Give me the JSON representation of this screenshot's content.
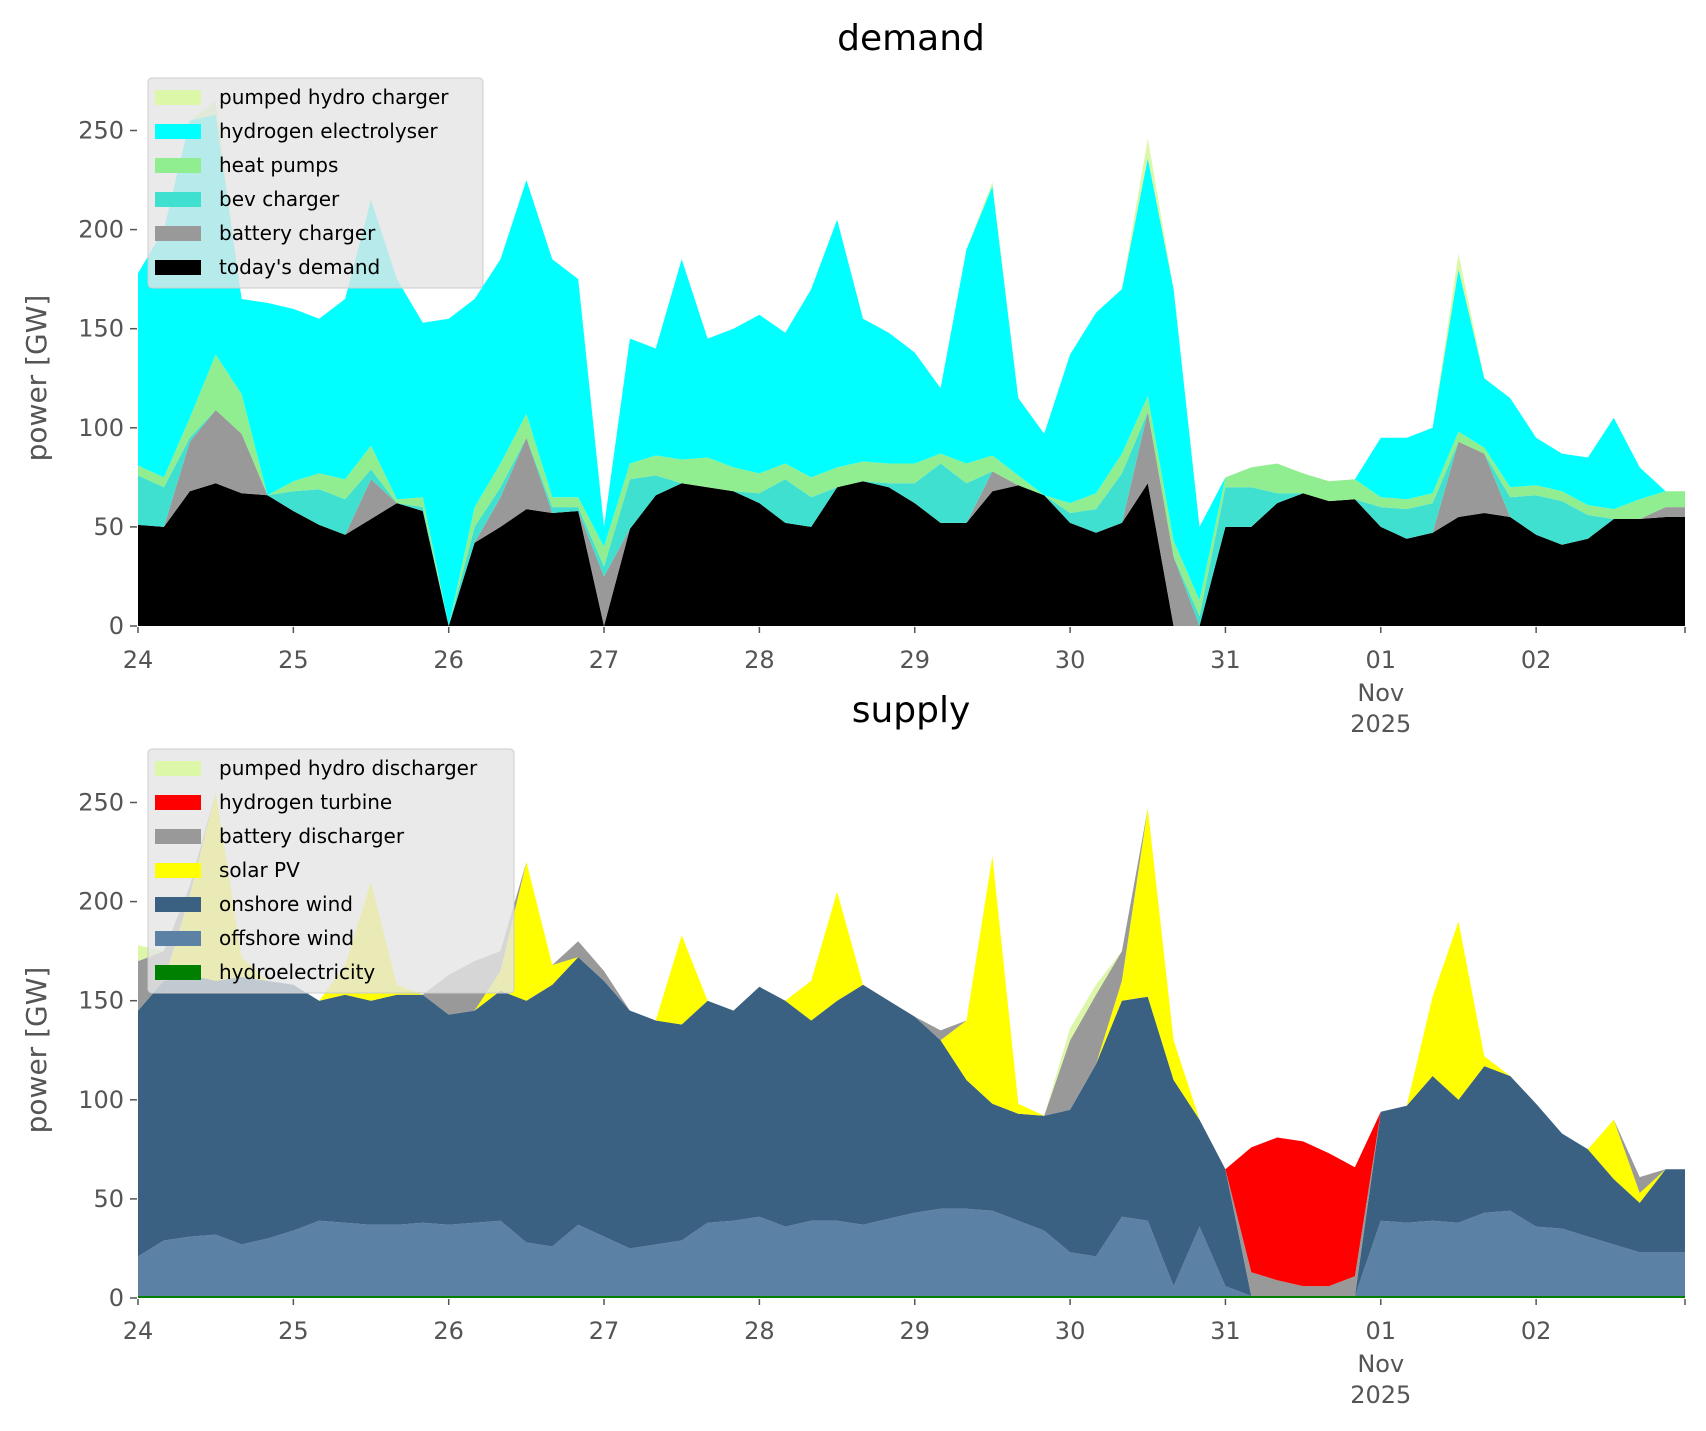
{
  "chart_data": [
    {
      "type": "area",
      "stacked": true,
      "title": "demand",
      "ylabel": "power [GW]",
      "xlabel": "",
      "x_start": "2025-10-24 00:00",
      "x_step_hours": 4,
      "ylim": [
        0,
        275
      ],
      "grid": false,
      "legend_placement": "top-left",
      "xtick_labels": [
        "24",
        "25",
        "26",
        "27",
        "28",
        "29",
        "30",
        "31",
        "01",
        "02"
      ],
      "xtick_sublabel": [
        "Nov",
        "2025"
      ],
      "ytick_labels": [
        "0",
        "50",
        "100",
        "150",
        "200",
        "250"
      ],
      "series": [
        {
          "name": "pumped hydro charger",
          "color": "#dcf7a8",
          "values": [
            0,
            0,
            0,
            7,
            0,
            0,
            0,
            0,
            0,
            0,
            0,
            0,
            0,
            0,
            0,
            0,
            0,
            0,
            0,
            0,
            0,
            0,
            0,
            0,
            0,
            0,
            0,
            0,
            0,
            0,
            0,
            0,
            0,
            2,
            0,
            0,
            0,
            0,
            0,
            10,
            0,
            0,
            0,
            0,
            0,
            0,
            0,
            0,
            0,
            0,
            0,
            8,
            0,
            0,
            0,
            0,
            0,
            0,
            0,
            0
          ]
        },
        {
          "name": "hydrogen electrolyser",
          "color": "#00ffff",
          "values": [
            97,
            125,
            150,
            121,
            48,
            97,
            87,
            78,
            91,
            124,
            111,
            88,
            155,
            105,
            103,
            118,
            120,
            110,
            10,
            63,
            54,
            101,
            60,
            70,
            80,
            66,
            95,
            125,
            72,
            66,
            56,
            33,
            108,
            136,
            39,
            31,
            75,
            91,
            83,
            120,
            127,
            37,
            0,
            0,
            0,
            0,
            0,
            0,
            30,
            31,
            33,
            82,
            35,
            45,
            24,
            19,
            24,
            46,
            16,
            0
          ]
        },
        {
          "name": "heat pumps",
          "color": "#90ee90",
          "values": [
            5,
            5,
            10,
            28,
            20,
            0,
            5,
            8,
            10,
            12,
            2,
            5,
            0,
            10,
            12,
            12,
            5,
            5,
            10,
            8,
            10,
            12,
            15,
            12,
            10,
            8,
            10,
            10,
            10,
            10,
            10,
            5,
            10,
            8,
            5,
            0,
            5,
            8,
            10,
            8,
            8,
            8,
            5,
            10,
            15,
            10,
            10,
            10,
            5,
            5,
            5,
            5,
            3,
            5,
            5,
            5,
            5,
            5,
            10,
            8
          ]
        },
        {
          "name": "bev charger",
          "color": "#40e0d0",
          "values": [
            25,
            20,
            2,
            0,
            0,
            0,
            10,
            18,
            18,
            5,
            0,
            2,
            0,
            8,
            5,
            0,
            3,
            2,
            5,
            25,
            10,
            0,
            0,
            0,
            5,
            22,
            15,
            0,
            0,
            2,
            10,
            30,
            20,
            0,
            0,
            0,
            5,
            12,
            25,
            0,
            0,
            5,
            20,
            20,
            5,
            0,
            0,
            0,
            10,
            15,
            15,
            0,
            0,
            10,
            20,
            22,
            12,
            0,
            0,
            0
          ]
        },
        {
          "name": "battery charger",
          "color": "#999999",
          "values": [
            0,
            0,
            25,
            37,
            30,
            0,
            0,
            0,
            0,
            20,
            0,
            0,
            0,
            0,
            15,
            36,
            0,
            0,
            25,
            0,
            0,
            0,
            0,
            0,
            0,
            0,
            0,
            0,
            0,
            0,
            0,
            0,
            0,
            10,
            0,
            0,
            0,
            0,
            0,
            36,
            35,
            0,
            0,
            0,
            0,
            0,
            0,
            0,
            0,
            0,
            0,
            38,
            30,
            0,
            0,
            0,
            0,
            0,
            0,
            5
          ]
        },
        {
          "name": "today's demand",
          "color": "#000000",
          "values": [
            51,
            50,
            68,
            72,
            67,
            66,
            58,
            51,
            46,
            54,
            62,
            58,
            0,
            42,
            50,
            59,
            57,
            58,
            0,
            49,
            66,
            72,
            70,
            68,
            62,
            52,
            50,
            70,
            73,
            70,
            62,
            52,
            52,
            68,
            71,
            66,
            52,
            47,
            52,
            72,
            0,
            0,
            50,
            50,
            62,
            67,
            63,
            64,
            50,
            44,
            47,
            55,
            57,
            55,
            46,
            41,
            44,
            54,
            54,
            55
          ]
        }
      ]
    },
    {
      "type": "area",
      "stacked": true,
      "title": "supply",
      "ylabel": "power [GW]",
      "xlabel": "",
      "x_start": "2025-10-24 00:00",
      "x_step_hours": 4,
      "ylim": [
        0,
        275
      ],
      "grid": false,
      "legend_placement": "top-left",
      "xtick_labels": [
        "24",
        "25",
        "26",
        "27",
        "28",
        "29",
        "30",
        "31",
        "01",
        "02"
      ],
      "xtick_sublabel": [
        "Nov",
        "2025"
      ],
      "ytick_labels": [
        "0",
        "50",
        "100",
        "150",
        "200",
        "250"
      ],
      "series": [
        {
          "name": "pumped hydro discharger",
          "color": "#dcf7a8",
          "values": [
            8,
            0,
            0,
            0,
            0,
            0,
            0,
            0,
            0,
            0,
            0,
            0,
            0,
            0,
            0,
            0,
            0,
            0,
            0,
            0,
            0,
            0,
            0,
            0,
            0,
            0,
            0,
            0,
            0,
            0,
            0,
            0,
            0,
            0,
            0,
            0,
            6,
            5,
            0,
            0,
            0,
            0,
            0,
            0,
            0,
            0,
            0,
            0,
            0,
            0,
            0,
            0,
            0,
            0,
            0,
            0,
            0,
            0,
            0,
            0
          ]
        },
        {
          "name": "hydrogen turbine",
          "color": "#ff0000",
          "values": [
            0,
            0,
            0,
            0,
            0,
            0,
            0,
            0,
            0,
            0,
            0,
            0,
            0,
            0,
            0,
            0,
            0,
            0,
            0,
            0,
            0,
            0,
            0,
            0,
            0,
            0,
            0,
            0,
            0,
            0,
            0,
            0,
            0,
            0,
            0,
            0,
            0,
            0,
            0,
            0,
            0,
            0,
            0,
            63,
            72,
            73,
            67,
            55,
            0,
            0,
            0,
            0,
            0,
            0,
            0,
            0,
            0,
            0,
            0,
            0
          ]
        },
        {
          "name": "battery discharger",
          "color": "#999999",
          "values": [
            25,
            15,
            5,
            0,
            0,
            0,
            0,
            0,
            0,
            0,
            0,
            0,
            20,
            25,
            10,
            0,
            0,
            8,
            5,
            0,
            0,
            0,
            0,
            0,
            0,
            0,
            0,
            0,
            0,
            0,
            0,
            5,
            0,
            0,
            0,
            0,
            35,
            35,
            15,
            0,
            0,
            0,
            0,
            12,
            8,
            5,
            5,
            10,
            0,
            0,
            0,
            0,
            0,
            0,
            0,
            0,
            0,
            0,
            8,
            0
          ]
        },
        {
          "name": "solar PV",
          "color": "#ffff00",
          "values": [
            0,
            0,
            40,
            95,
            10,
            0,
            0,
            0,
            15,
            60,
            5,
            0,
            0,
            0,
            10,
            70,
            10,
            0,
            0,
            0,
            0,
            45,
            0,
            0,
            0,
            0,
            20,
            55,
            0,
            0,
            0,
            0,
            30,
            125,
            5,
            0,
            0,
            0,
            10,
            95,
            20,
            0,
            0,
            0,
            0,
            0,
            0,
            0,
            0,
            0,
            40,
            90,
            5,
            0,
            0,
            0,
            0,
            30,
            5,
            0
          ]
        },
        {
          "name": "onshore wind",
          "color": "#3b6182",
          "values": [
            124,
            131,
            132,
            128,
            135,
            130,
            124,
            111,
            115,
            113,
            116,
            115,
            106,
            107,
            116,
            122,
            132,
            135,
            129,
            120,
            113,
            109,
            112,
            106,
            116,
            114,
            101,
            111,
            121,
            110,
            99,
            85,
            65,
            54,
            54,
            58,
            72,
            97,
            109,
            113,
            104,
            54,
            59,
            0,
            0,
            0,
            0,
            0,
            55,
            59,
            73,
            62,
            74,
            68,
            62,
            48,
            44,
            33,
            25,
            42
          ]
        },
        {
          "name": "offshore wind",
          "color": "#5b82a4",
          "values": [
            20,
            28,
            30,
            31,
            26,
            29,
            33,
            38,
            37,
            36,
            36,
            37,
            36,
            37,
            38,
            27,
            25,
            36,
            30,
            24,
            26,
            28,
            37,
            38,
            40,
            35,
            38,
            38,
            36,
            39,
            42,
            44,
            44,
            43,
            38,
            33,
            22,
            20,
            40,
            38,
            5,
            35,
            5,
            0,
            0,
            0,
            0,
            0,
            38,
            37,
            38,
            37,
            42,
            43,
            35,
            34,
            30,
            26,
            22,
            22
          ]
        },
        {
          "name": "hydroelectricity",
          "color": "#008000",
          "values": [
            1,
            1,
            1,
            1,
            1,
            1,
            1,
            1,
            1,
            1,
            1,
            1,
            1,
            1,
            1,
            1,
            1,
            1,
            1,
            1,
            1,
            1,
            1,
            1,
            1,
            1,
            1,
            1,
            1,
            1,
            1,
            1,
            1,
            1,
            1,
            1,
            1,
            1,
            1,
            1,
            1,
            1,
            1,
            1,
            1,
            1,
            1,
            1,
            1,
            1,
            1,
            1,
            1,
            1,
            1,
            1,
            1,
            1,
            1,
            1
          ]
        }
      ]
    }
  ]
}
